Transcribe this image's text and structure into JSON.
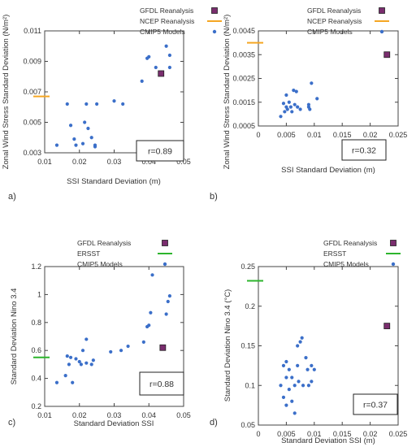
{
  "chart_data": [
    {
      "type": "scatter",
      "panel_label": "a)",
      "xlabel": "SSI Standard Deviation (m)",
      "ylabel": "Zonal Wind Stress Standard Deviation (N/m²)",
      "xlim": [
        0.01,
        0.05
      ],
      "ylim": [
        0.003,
        0.011
      ],
      "xticks": [
        "0.01",
        "0.02",
        "0.03",
        "0.04",
        "0.05"
      ],
      "yticks": [
        "0.003",
        "0.005",
        "0.007",
        "0.009",
        "0.011"
      ],
      "legend": [
        "GFDL Reanalysis",
        "NCEP Reanalysis",
        "CMIP5 Models"
      ],
      "legend_position": "top-right",
      "reanalysis": {
        "x": 0.0435,
        "y": 0.0082,
        "color": "#7a2d6e"
      },
      "observation_tick": {
        "y": 0.0067,
        "color": "#f5a623"
      },
      "annotation": "r=0.89",
      "series": [
        {
          "points": [
            [
              0.0135,
              0.0035
            ],
            [
              0.0165,
              0.0062
            ],
            [
              0.0175,
              0.0048
            ],
            [
              0.0185,
              0.0039
            ],
            [
              0.019,
              0.0035
            ],
            [
              0.021,
              0.0036
            ],
            [
              0.0215,
              0.005
            ],
            [
              0.022,
              0.0062
            ],
            [
              0.0225,
              0.0046
            ],
            [
              0.0235,
              0.004
            ],
            [
              0.0245,
              0.0035
            ],
            [
              0.0245,
              0.0034
            ],
            [
              0.025,
              0.0062
            ],
            [
              0.03,
              0.0064
            ],
            [
              0.0325,
              0.0062
            ],
            [
              0.038,
              0.0077
            ],
            [
              0.0395,
              0.0092
            ],
            [
              0.04,
              0.0093
            ],
            [
              0.042,
              0.0086
            ],
            [
              0.045,
              0.01
            ],
            [
              0.046,
              0.0094
            ],
            [
              0.046,
              0.0086
            ]
          ]
        }
      ]
    },
    {
      "type": "scatter",
      "panel_label": "b)",
      "xlabel": "SSI Standard Deviation (m)",
      "ylabel": "Zonal Wind Stress Standard Deviation (N/m²)",
      "xlim": [
        0,
        0.025
      ],
      "ylim": [
        0.0005,
        0.0045
      ],
      "xticks": [
        "0",
        "0.005",
        "0.01",
        "0.015",
        "0.02",
        "0.025"
      ],
      "yticks": [
        "0.0005",
        "0.0015",
        "0.0025",
        "0.0035",
        "0.0045"
      ],
      "legend": [
        "GFDL Reanalysis",
        "NCEP Reanalysis",
        "CMIP5 Models"
      ],
      "legend_position": "top-right",
      "reanalysis": {
        "x": 0.023,
        "y": 0.0035,
        "color": "#7a2d6e"
      },
      "observation_tick": {
        "y": 0.004,
        "color": "#f5a623"
      },
      "annotation": "r=0.32",
      "series": [
        {
          "points": [
            [
              0.004,
              0.0009
            ],
            [
              0.0045,
              0.00145
            ],
            [
              0.0047,
              0.0011
            ],
            [
              0.005,
              0.0018
            ],
            [
              0.005,
              0.0013
            ],
            [
              0.0052,
              0.0012
            ],
            [
              0.0055,
              0.0015
            ],
            [
              0.0058,
              0.0013
            ],
            [
              0.006,
              0.0011
            ],
            [
              0.0063,
              0.002
            ],
            [
              0.0065,
              0.0014
            ],
            [
              0.0068,
              0.00195
            ],
            [
              0.007,
              0.0013
            ],
            [
              0.0075,
              0.0012
            ],
            [
              0.009,
              0.0013
            ],
            [
              0.009,
              0.0014
            ],
            [
              0.0092,
              0.0012
            ],
            [
              0.0095,
              0.0023
            ],
            [
              0.0105,
              0.00165
            ]
          ]
        }
      ]
    },
    {
      "type": "scatter",
      "panel_label": "c)",
      "xlabel": "Standard Deviation SSI",
      "ylabel": "Standard Deviation Nino 3.4",
      "xlim": [
        0.01,
        0.05
      ],
      "ylim": [
        0.2,
        1.2
      ],
      "xticks": [
        "0.01",
        "0.02",
        "0.03",
        "0.04",
        "0.05"
      ],
      "yticks": [
        "0.2",
        "0.4",
        "0.6",
        "0.8",
        "1",
        "1.2"
      ],
      "legend": [
        "GFDL Reanalysis",
        "ERSST",
        "CMIP5 Models"
      ],
      "legend_position": "top-left",
      "reanalysis": {
        "x": 0.044,
        "y": 0.62,
        "color": "#7a2d6e"
      },
      "observation_tick": {
        "y": 0.55,
        "color": "#2db52d"
      },
      "annotation": "r=0.88",
      "series": [
        {
          "points": [
            [
              0.0135,
              0.37
            ],
            [
              0.016,
              0.42
            ],
            [
              0.0165,
              0.56
            ],
            [
              0.017,
              0.5
            ],
            [
              0.0175,
              0.55
            ],
            [
              0.018,
              0.37
            ],
            [
              0.019,
              0.54
            ],
            [
              0.02,
              0.52
            ],
            [
              0.0205,
              0.5
            ],
            [
              0.021,
              0.6
            ],
            [
              0.022,
              0.51
            ],
            [
              0.022,
              0.68
            ],
            [
              0.0235,
              0.5
            ],
            [
              0.024,
              0.53
            ],
            [
              0.029,
              0.59
            ],
            [
              0.032,
              0.6
            ],
            [
              0.034,
              0.63
            ],
            [
              0.0385,
              0.66
            ],
            [
              0.0395,
              0.77
            ],
            [
              0.04,
              0.78
            ],
            [
              0.0405,
              0.87
            ],
            [
              0.041,
              1.14
            ],
            [
              0.045,
              0.86
            ],
            [
              0.0455,
              0.95
            ],
            [
              0.046,
              0.99
            ]
          ]
        }
      ]
    },
    {
      "type": "scatter",
      "panel_label": "d)",
      "xlabel": "Standard Deviation SSI (m)",
      "ylabel": "Standard Deviation Nino 3.4 (°C)",
      "xlim": [
        0,
        0.025
      ],
      "ylim": [
        0.05,
        0.25
      ],
      "xticks": [
        "0",
        "0.005",
        "0.01",
        "0.015",
        "0.02",
        "0.025"
      ],
      "yticks": [
        "0.05",
        "0.1",
        "0.15",
        "0.2",
        "0.25"
      ],
      "legend": [
        "GFDL Reanalysis",
        "ERSST",
        "CMIP5 Models"
      ],
      "legend_position": "top-right",
      "reanalysis": {
        "x": 0.023,
        "y": 0.175,
        "color": "#7a2d6e"
      },
      "observation_tick": {
        "y": 0.232,
        "color": "#2db52d"
      },
      "annotation": "r=0.37",
      "series": [
        {
          "points": [
            [
              0.004,
              0.1
            ],
            [
              0.0045,
              0.125
            ],
            [
              0.0045,
              0.085
            ],
            [
              0.005,
              0.13
            ],
            [
              0.005,
              0.11
            ],
            [
              0.005,
              0.075
            ],
            [
              0.0055,
              0.095
            ],
            [
              0.0055,
              0.12
            ],
            [
              0.006,
              0.08
            ],
            [
              0.006,
              0.11
            ],
            [
              0.0065,
              0.1
            ],
            [
              0.0065,
              0.065
            ],
            [
              0.007,
              0.15
            ],
            [
              0.007,
              0.125
            ],
            [
              0.0072,
              0.105
            ],
            [
              0.0075,
              0.155
            ],
            [
              0.0078,
              0.16
            ],
            [
              0.008,
              0.1
            ],
            [
              0.0085,
              0.135
            ],
            [
              0.0088,
              0.12
            ],
            [
              0.009,
              0.1
            ],
            [
              0.0095,
              0.105
            ],
            [
              0.0095,
              0.125
            ],
            [
              0.01,
              0.12
            ]
          ]
        }
      ]
    }
  ]
}
